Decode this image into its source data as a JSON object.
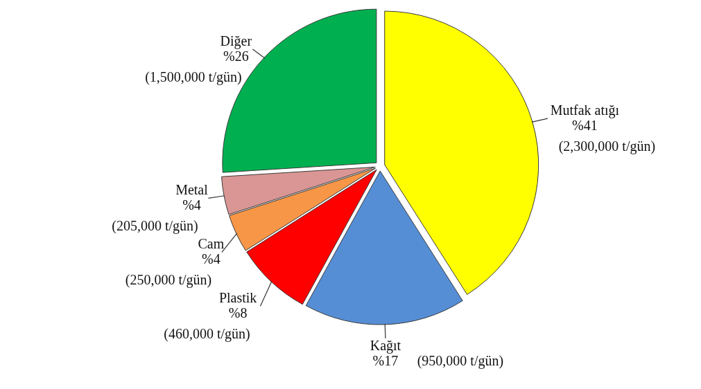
{
  "chart_data": {
    "type": "pie",
    "categories": [
      "Mutfak atığı",
      "Kağıt",
      "Plastik",
      "Cam",
      "Metal",
      "Diğer"
    ],
    "values": [
      41,
      17,
      8,
      4,
      4,
      26
    ],
    "colors": [
      "#ffff00",
      "#558ed5",
      "#ff0000",
      "#f79646",
      "#d99694",
      "#00b050"
    ],
    "value_labels": [
      "%41",
      "%17",
      "%8",
      "%4",
      "%4",
      "%26"
    ],
    "annotations": [
      "(2,300,000 t/gün)",
      "(950,000 t/gün)",
      "(460,000 t/gün)",
      "(250,000 t/gün)",
      "(205,000 t/gün)",
      "(1,500,000 t/gün)"
    ]
  }
}
